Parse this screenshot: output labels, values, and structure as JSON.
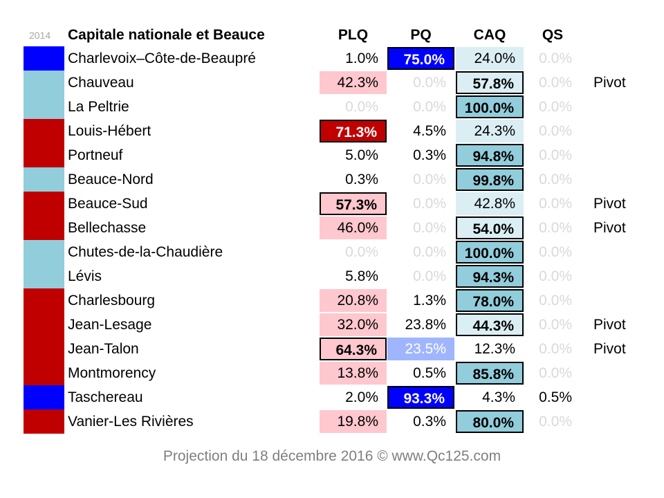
{
  "chart_data": {
    "type": "table",
    "year_label": "2014",
    "title": "Capitale nationale et Beauce",
    "columns": [
      "PLQ",
      "PQ",
      "CAQ",
      "QS"
    ],
    "party_colors": {
      "PLQ": "#c00000",
      "PQ": "#0000ff",
      "CAQ": "#92cddc"
    },
    "rows": [
      {
        "name": "Charlevoix–Côte-de-Beaupré",
        "incumbent_2014": "PQ",
        "values": [
          "1.0%",
          "75.0%",
          "24.0%",
          "0.0%"
        ],
        "pivot": ""
      },
      {
        "name": "Chauveau",
        "incumbent_2014": "CAQ",
        "values": [
          "42.3%",
          "0.0%",
          "57.8%",
          "0.0%"
        ],
        "pivot": "Pivot"
      },
      {
        "name": "La Peltrie",
        "incumbent_2014": "CAQ",
        "values": [
          "0.0%",
          "0.0%",
          "100.0%",
          "0.0%"
        ],
        "pivot": ""
      },
      {
        "name": "Louis-Hébert",
        "incumbent_2014": "PLQ",
        "values": [
          "71.3%",
          "4.5%",
          "24.3%",
          "0.0%"
        ],
        "pivot": ""
      },
      {
        "name": "Portneuf",
        "incumbent_2014": "PLQ",
        "values": [
          "5.0%",
          "0.3%",
          "94.8%",
          "0.0%"
        ],
        "pivot": ""
      },
      {
        "name": "Beauce-Nord",
        "incumbent_2014": "CAQ",
        "values": [
          "0.3%",
          "0.0%",
          "99.8%",
          "0.0%"
        ],
        "pivot": ""
      },
      {
        "name": "Beauce-Sud",
        "incumbent_2014": "PLQ",
        "values": [
          "57.3%",
          "0.0%",
          "42.8%",
          "0.0%"
        ],
        "pivot": "Pivot"
      },
      {
        "name": "Bellechasse",
        "incumbent_2014": "PLQ",
        "values": [
          "46.0%",
          "0.0%",
          "54.0%",
          "0.0%"
        ],
        "pivot": "Pivot"
      },
      {
        "name": "Chutes-de-la-Chaudière",
        "incumbent_2014": "CAQ",
        "values": [
          "0.0%",
          "0.0%",
          "100.0%",
          "0.0%"
        ],
        "pivot": ""
      },
      {
        "name": "Lévis",
        "incumbent_2014": "CAQ",
        "values": [
          "5.8%",
          "0.0%",
          "94.3%",
          "0.0%"
        ],
        "pivot": ""
      },
      {
        "name": "Charlesbourg",
        "incumbent_2014": "PLQ",
        "values": [
          "20.8%",
          "1.3%",
          "78.0%",
          "0.0%"
        ],
        "pivot": ""
      },
      {
        "name": "Jean-Lesage",
        "incumbent_2014": "PLQ",
        "values": [
          "32.0%",
          "23.8%",
          "44.3%",
          "0.0%"
        ],
        "pivot": "Pivot"
      },
      {
        "name": "Jean-Talon",
        "incumbent_2014": "PLQ",
        "values": [
          "64.3%",
          "23.5%",
          "12.3%",
          "0.0%"
        ],
        "pivot": "Pivot"
      },
      {
        "name": "Montmorency",
        "incumbent_2014": "PLQ",
        "values": [
          "13.8%",
          "0.5%",
          "85.8%",
          "0.0%"
        ],
        "pivot": ""
      },
      {
        "name": "Taschereau",
        "incumbent_2014": "PQ",
        "values": [
          "2.0%",
          "93.3%",
          "4.3%",
          "0.5%"
        ],
        "pivot": ""
      },
      {
        "name": "Vanier-Les Rivières",
        "incumbent_2014": "PLQ",
        "values": [
          "19.8%",
          "0.3%",
          "80.0%",
          "0.0%"
        ],
        "pivot": ""
      }
    ]
  },
  "footer": "Projection du 18 décembre 2016 © www.Qc125.com"
}
